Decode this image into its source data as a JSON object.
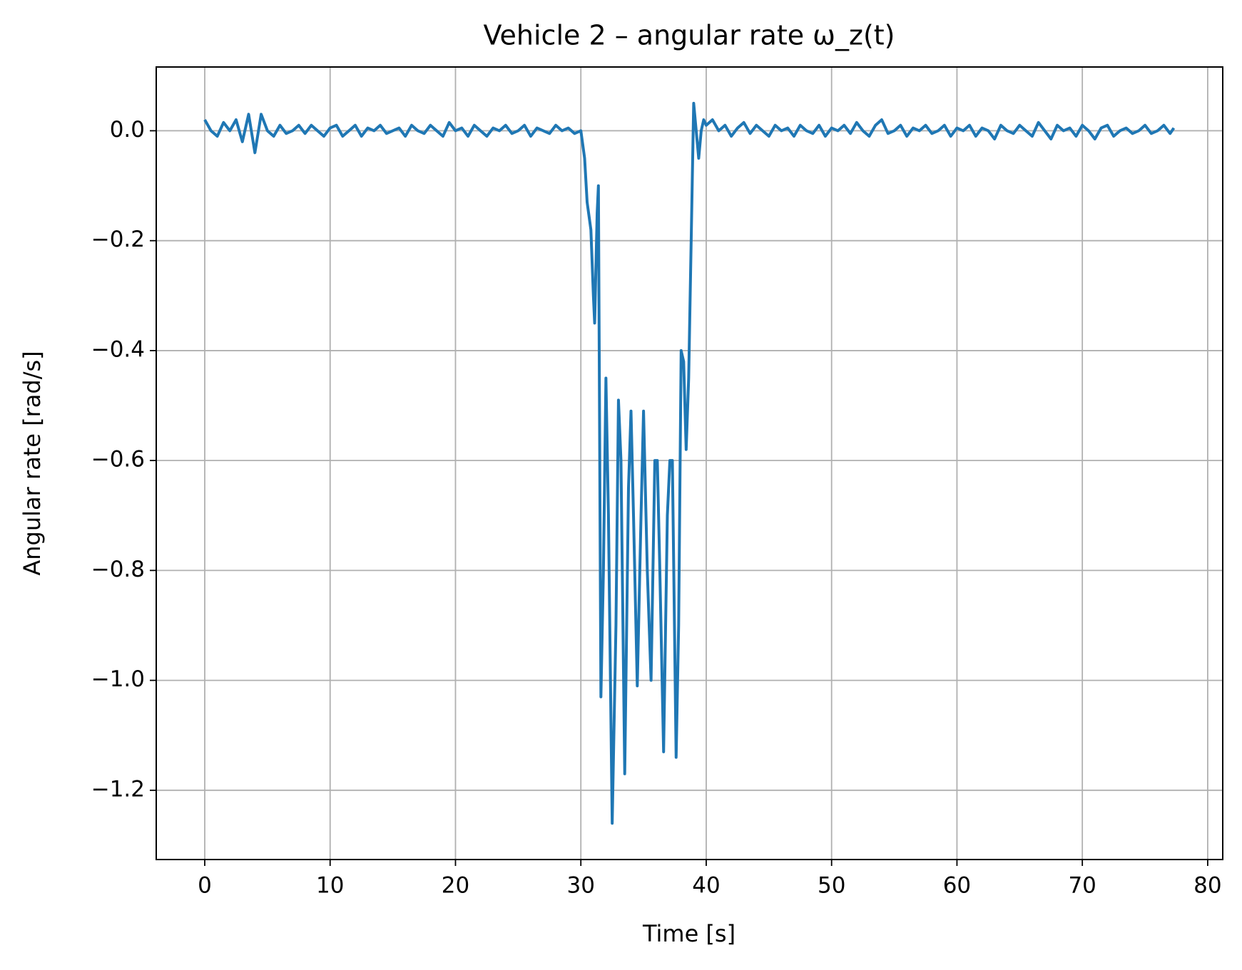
{
  "chart_data": {
    "type": "line",
    "title": "Vehicle 2 – angular rate ω_z(t)",
    "x_label": "Time [s]",
    "y_label": "Angular rate [rad/s]",
    "color": "#1f77b4",
    "grid": true,
    "x": [
      0,
      0.5,
      1,
      1.5,
      2,
      2.5,
      3,
      3.5,
      4,
      4.5,
      5,
      5.5,
      6,
      6.5,
      7,
      7.5,
      8,
      8.5,
      9,
      9.5,
      10,
      10.5,
      11,
      11.5,
      12,
      12.5,
      13,
      13.5,
      14,
      14.5,
      15,
      15.5,
      16,
      16.5,
      17,
      17.5,
      18,
      18.5,
      19,
      19.5,
      20,
      20.5,
      21,
      21.5,
      22,
      22.5,
      23,
      23.5,
      24,
      24.5,
      25,
      25.5,
      26,
      26.5,
      27,
      27.5,
      28,
      28.5,
      29,
      29.5,
      30,
      30.3,
      30.5,
      30.8,
      31,
      31.1,
      31.3,
      31.4,
      31.6,
      31.8,
      32,
      32.2,
      32.5,
      32.8,
      33,
      33.2,
      33.5,
      33.8,
      34,
      34.2,
      34.5,
      34.8,
      35,
      35.3,
      35.6,
      35.9,
      36.1,
      36.3,
      36.6,
      36.9,
      37.1,
      37.3,
      37.6,
      37.8,
      38,
      38.2,
      38.4,
      38.6,
      38.8,
      39,
      39.2,
      39.4,
      39.6,
      39.8,
      40,
      40.5,
      41,
      41.5,
      42,
      42.5,
      43,
      43.5,
      44,
      44.5,
      45,
      45.5,
      46,
      46.5,
      47,
      47.5,
      48,
      48.5,
      49,
      49.5,
      50,
      50.5,
      51,
      51.5,
      52,
      52.5,
      53,
      53.5,
      54,
      54.5,
      55,
      55.5,
      56,
      56.5,
      57,
      57.5,
      58,
      58.5,
      59,
      59.5,
      60,
      60.5,
      61,
      61.5,
      62,
      62.5,
      63,
      63.5,
      64,
      64.5,
      65,
      65.5,
      66,
      66.5,
      67,
      67.5,
      68,
      68.5,
      69,
      69.5,
      70,
      70.5,
      71,
      71.5,
      72,
      72.5,
      73,
      73.5,
      74,
      74.5,
      75,
      75.5,
      76,
      76.5,
      77,
      77.3
    ],
    "values": [
      0.02,
      0.0,
      -0.01,
      0.015,
      0.0,
      0.02,
      -0.02,
      0.03,
      -0.04,
      0.03,
      0.0,
      -0.01,
      0.01,
      -0.005,
      0.0,
      0.01,
      -0.005,
      0.01,
      0.0,
      -0.01,
      0.005,
      0.01,
      -0.01,
      0.0,
      0.01,
      -0.01,
      0.005,
      0.0,
      0.01,
      -0.005,
      0.0,
      0.005,
      -0.01,
      0.01,
      0.0,
      -0.005,
      0.01,
      0.0,
      -0.01,
      0.015,
      0.0,
      0.005,
      -0.01,
      0.01,
      0.0,
      -0.01,
      0.005,
      0.0,
      0.01,
      -0.005,
      0.0,
      0.01,
      -0.01,
      0.005,
      0.0,
      -0.005,
      0.01,
      0.0,
      0.005,
      -0.005,
      0,
      -0.05,
      -0.13,
      -0.18,
      -0.3,
      -0.35,
      -0.15,
      -0.1,
      -1.03,
      -0.8,
      -0.45,
      -0.7,
      -1.26,
      -0.9,
      -0.49,
      -0.6,
      -1.17,
      -0.65,
      -0.51,
      -0.7,
      -1.01,
      -0.7,
      -0.51,
      -0.8,
      -1,
      -0.6,
      -0.6,
      -0.8,
      -1.13,
      -0.7,
      -0.6,
      -0.6,
      -1.14,
      -0.9,
      -0.4,
      -0.42,
      -0.58,
      -0.45,
      -0.2,
      0.05,
      0,
      -0.05,
      0,
      0.02,
      0.01,
      0.02,
      0.0,
      0.01,
      -0.01,
      0.005,
      0.015,
      -0.005,
      0.01,
      0.0,
      -0.01,
      0.01,
      0.0,
      0.005,
      -0.01,
      0.01,
      0.0,
      -0.005,
      0.01,
      -0.01,
      0.005,
      0.0,
      0.01,
      -0.005,
      0.015,
      0.0,
      -0.01,
      0.01,
      0.02,
      -0.005,
      0.0,
      0.01,
      -0.01,
      0.005,
      0.0,
      0.01,
      -0.005,
      0.0,
      0.01,
      -0.01,
      0.005,
      0.0,
      0.01,
      -0.01,
      0.005,
      0.0,
      -0.015,
      0.01,
      0.0,
      -0.005,
      0.01,
      0.0,
      -0.01,
      0.015,
      0.0,
      -0.015,
      0.01,
      0.0,
      0.005,
      -0.01,
      0.01,
      0.0,
      -0.015,
      0.005,
      0.01,
      -0.01,
      0.0,
      0.005,
      -0.005,
      0.0,
      0.01,
      -0.005,
      0.0,
      0.01,
      -0.005,
      0.005
    ],
    "xlim": [
      -3.87,
      81.2
    ],
    "ylim": [
      -1.326,
      0.116
    ],
    "xticks": [
      0,
      10,
      20,
      30,
      40,
      50,
      60,
      70,
      80
    ],
    "yticks": [
      {
        "value": -1.2,
        "label": "−1.2"
      },
      {
        "value": -1.0,
        "label": "−1.0"
      },
      {
        "value": -0.8,
        "label": "−0.8"
      },
      {
        "value": -0.6,
        "label": "−0.6"
      },
      {
        "value": -0.4,
        "label": "−0.4"
      },
      {
        "value": -0.2,
        "label": "−0.2"
      },
      {
        "value": 0,
        "label": "0.0"
      }
    ]
  }
}
